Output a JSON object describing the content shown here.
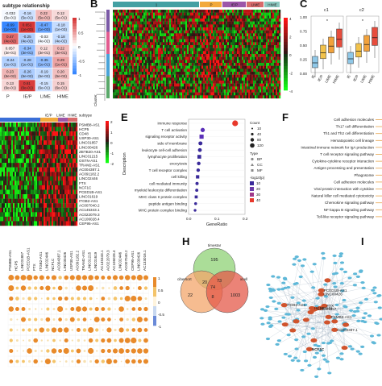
{
  "panels": {
    "B": "B",
    "C": "C",
    "E": "E",
    "F": "F",
    "H": "H",
    "I": "I"
  },
  "panel_a": {
    "title": "subtype relationship",
    "rows": [
      [
        "-0.032",
        "-0.16",
        "0.22",
        "0.12"
      ],
      [
        "-0.69",
        "0.651",
        "-0.47",
        "-0.18"
      ],
      [
        "0.47",
        "-0.25",
        "-0.03",
        "-0.18"
      ],
      [
        "0.057",
        "-0.34",
        "0.12",
        "0.22"
      ],
      [
        "-0.24",
        "-0.28",
        "-0.35",
        "0.29"
      ],
      [
        "0.23",
        "-0.26",
        "-0.19",
        "0.20"
      ],
      [
        "0.13",
        "0.61",
        "-0.15",
        "0.15"
      ]
    ],
    "pvals": [
      "(5e-01)",
      "(1e-03)",
      "(4e-02)",
      "(3e-01)",
      "(1e-01)",
      "(5e-02)",
      "(6e-01)"
    ],
    "scale_ticks": [
      "1",
      "0.5",
      "0",
      "-0.5",
      "-1"
    ],
    "xlabels": [
      "P",
      "IE/P",
      "LIME",
      "HIME"
    ]
  },
  "panel_d": {
    "header": [
      "IE/P",
      "LIME",
      "HIME",
      "subtype"
    ],
    "genes": [
      "PSMB8-AS1",
      "HCP5",
      "CD48",
      "USP30-AS1",
      "LINC01857",
      "LINC00426",
      "ZBTB20-AS1",
      "LINC01215",
      "OSTN-AS1",
      "TRAM2-AS1",
      "AC004387.1",
      "AC091182.2",
      "LINC02446",
      "FTX",
      "NCF1C",
      "PCED1B-AS1",
      "LINC01619",
      "ITGB2-AS1",
      "AC007040.2",
      "AC145343.1",
      "AC022079.3",
      "AC106028.4",
      "CEP95-AS1"
    ],
    "scale": [
      "2",
      "1",
      "0",
      "-1",
      "-2"
    ]
  },
  "panel_b": {
    "groups": [
      "1",
      "P",
      "IE/P",
      "LIME",
      "HIME"
    ],
    "colors": [
      "#43a0a3",
      "#f2a93b",
      "#9c56a8",
      "#d86a6a",
      "#8cc8c0"
    ],
    "scale": [
      "4",
      "2",
      "0",
      "-2",
      "-4"
    ],
    "ylabel": "Cluster"
  },
  "panel_c": {
    "titles": [
      "c1",
      "c2"
    ],
    "y_ticks": [
      "1.00",
      "0.75",
      "0.50",
      "0.25",
      "0.00"
    ],
    "x_ticks_c1": [
      "IE",
      "IE/P",
      "LIME",
      "HIME"
    ],
    "x_ticks_c2": [
      "IE",
      "IE/P",
      "LIME",
      "HIME"
    ]
  },
  "panel_e": {
    "terms": [
      "immune response",
      "T cell activation",
      "signaling receptor activity",
      "side of membrane",
      "leukocyte cell-cell adhesion",
      "lymphocyte proliferation",
      "exocytosis",
      "T cell receptor complex",
      "cell killing",
      "cell mediated immunity",
      "myeloid leukocyte differentiation",
      "MHC class II protein complex",
      "peptide antigen binding",
      "MHC protein complex binding"
    ],
    "ratios": [
      0.165,
      0.05,
      0.046,
      0.042,
      0.04,
      0.038,
      0.036,
      0.034,
      0.032,
      0.03,
      0.029,
      0.027,
      0.025,
      0.023
    ],
    "xlabel": "GeneRatio",
    "ylabel": "Description",
    "x_ticks": [
      "0.0",
      "0.1",
      "0.2"
    ],
    "legend_count_title": "Count",
    "legend_count": [
      "10",
      "40",
      "80",
      "120"
    ],
    "legend_type_title": "Type",
    "legend_type": [
      "BP",
      "CC",
      "MF"
    ],
    "legend_p_title": "-log10(p)",
    "legend_p": [
      "10",
      "20",
      "30",
      "40"
    ]
  },
  "panel_f": {
    "terms": [
      "Cell adhesion molecules",
      "Th17 cell differentiation",
      "Th1 and Th2 cell differentiation",
      "Hematopoietic cell lineage",
      "Intestinal immune network for IgA production",
      "T cell receptor signaling pathway",
      "Cytokine-cytokine receptor interaction",
      "Antigen processing and presentation",
      "Phagosome",
      "Cell adhesion molecules",
      "Viral protein interaction with cytokine",
      "Natural killer cell mediated cytotoxicity",
      "Chemokine signaling pathway",
      "NF-kappa B signaling pathway",
      "Toll-like receptor signaling pathway"
    ]
  },
  "panel_g": {
    "cols": [
      "PSMB8-AS1",
      "HCP5",
      "LINC01857",
      "PCED1B-AS1",
      "FTX",
      "ITGB2-AS1",
      "LINC02446",
      "NCF1C",
      "AC004387.1",
      "LINC00426",
      "USP30-AS1",
      "AC091182.2",
      "TRAM2-AS1",
      "LINC01215",
      "LINC01619",
      "AC145343.1",
      "AC022079.3",
      "AC106028.4",
      "LINC02446",
      "AC007040.2",
      "CEP95-AS1",
      "LINC00426",
      "AC133016.1"
    ],
    "scale": [
      "1",
      "0.5",
      "0",
      "-0.5",
      "-1"
    ]
  },
  "panel_h": {
    "sets": [
      "timestar",
      "cibersort",
      "xcell"
    ],
    "regions": [
      "195",
      "22",
      "1003",
      "73",
      "8",
      "20",
      "74"
    ],
    "colors": [
      "#8fd176",
      "#f3a66b",
      "#e45a4a"
    ]
  },
  "panel_i": {
    "labels": [
      "NCF1C",
      "FTX",
      "PSMB8-AS1",
      "HCP5",
      "LINC00426",
      "LINC01857",
      "AC004387.1",
      "CD48",
      "PCED1B-AS1",
      "ITGB2-AS1"
    ]
  }
}
